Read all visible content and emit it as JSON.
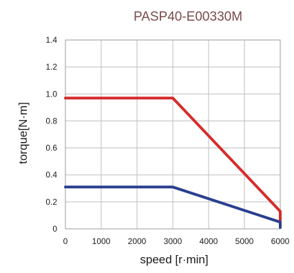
{
  "chart_data": {
    "type": "line",
    "title": "PASP40-E00330M",
    "xlabel": "speed [r·min]",
    "ylabel": "torque[N·m]",
    "xlim": [
      0,
      6000
    ],
    "ylim": [
      0,
      1.4
    ],
    "xticks": [
      0,
      1000,
      2000,
      3000,
      4000,
      5000,
      6000
    ],
    "yticks": [
      0,
      0.2,
      0.4,
      0.6,
      0.8,
      1.0,
      1.2,
      1.4
    ],
    "xtick_labels": [
      "0",
      "1000",
      "2000",
      "3000",
      "4000",
      "5000",
      "6000"
    ],
    "ytick_labels": [
      "0",
      "0.2",
      "0.4",
      "0.6",
      "0.8",
      "1.0",
      "1.2",
      "1.4"
    ],
    "grid": true,
    "series": [
      {
        "color": "#d62b2b",
        "x": [
          0,
          3000,
          6000,
          6000
        ],
        "y": [
          0.97,
          0.97,
          0.13,
          0.04
        ]
      },
      {
        "color": "#2a3f8f",
        "x": [
          0,
          3000,
          6000,
          6000
        ],
        "y": [
          0.31,
          0.31,
          0.05,
          0.01
        ]
      }
    ],
    "title_color": "#7a4a4a"
  }
}
